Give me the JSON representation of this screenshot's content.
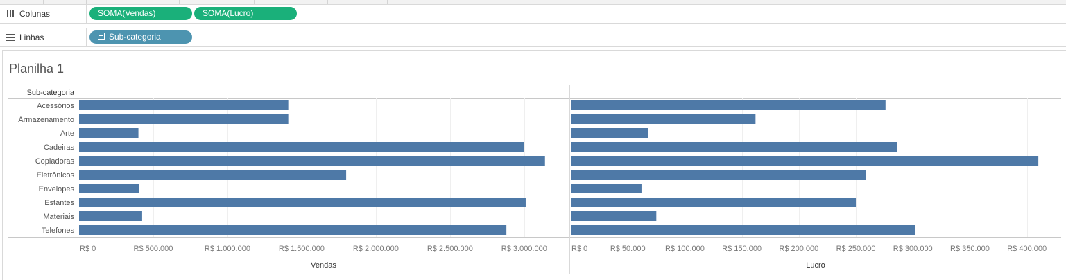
{
  "shelves": {
    "columns": {
      "label": "Colunas",
      "pills": [
        "SOMA(Vendas)",
        "SOMA(Lucro)"
      ]
    },
    "rows": {
      "label": "Linhas",
      "pills": [
        "Sub-categoria"
      ]
    }
  },
  "sheet": {
    "title": "Planilha 1"
  },
  "colors": {
    "bar": "#4e79a7",
    "pill_measure": "#1ab07a",
    "pill_dimension": "#4d94b0"
  },
  "chart_data": {
    "type": "bar",
    "row_header": "Sub-categoria",
    "categories": [
      "Acessórios",
      "Armazenamento",
      "Arte",
      "Cadeiras",
      "Copiadoras",
      "Eletrônicos",
      "Envelopes",
      "Estantes",
      "Materiais",
      "Telefones"
    ],
    "series": [
      {
        "name": "Vendas",
        "values": [
          1410000,
          1410000,
          400000,
          3000000,
          3140000,
          1800000,
          405000,
          3010000,
          425000,
          2880000
        ],
        "xlim": [
          0,
          3300000
        ],
        "ticks": [
          0,
          500000,
          1000000,
          1500000,
          2000000,
          2500000,
          3000000
        ],
        "tick_labels": [
          "R$ 0",
          "R$ 500.000",
          "R$ 1.000.000",
          "R$ 1.500.000",
          "R$ 2.000.000",
          "R$ 2.500.000",
          "R$ 3.000.000"
        ],
        "xlabel": "Vendas"
      },
      {
        "name": "Lucro",
        "values": [
          276000,
          162000,
          68000,
          286000,
          410000,
          259000,
          62000,
          250000,
          75000,
          302000
        ],
        "xlim": [
          0,
          430000
        ],
        "ticks": [
          0,
          50000,
          100000,
          150000,
          200000,
          250000,
          300000,
          350000,
          400000
        ],
        "tick_labels": [
          "R$ 0",
          "R$ 50.000",
          "R$ 100.000",
          "R$ 150.000",
          "R$ 200.000",
          "R$ 250.000",
          "R$ 300.000",
          "R$ 350.000",
          "R$ 400.000"
        ],
        "xlabel": "Lucro"
      }
    ],
    "grid": true
  }
}
